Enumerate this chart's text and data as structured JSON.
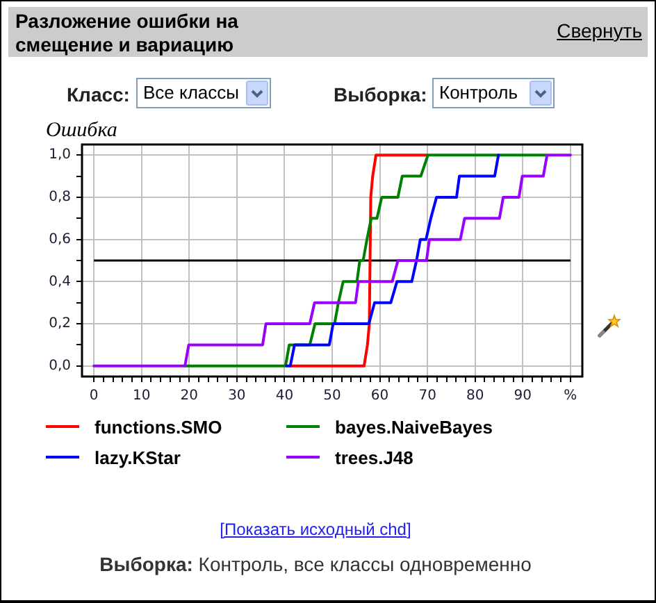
{
  "chart_data": {
    "type": "line",
    "title": "Разложение ошибки на смещение и вариацию",
    "ylabel": "Ошибка",
    "series": [
      {
        "name": "functions.SMO",
        "color": "#ff0000",
        "x": [
          41.3,
          56.7,
          57.4,
          57.8,
          58.1,
          58.5,
          59.2,
          70.1
        ],
        "values": [
          0,
          0,
          0.1,
          0.2,
          0.8,
          0.9,
          1,
          1
        ]
      },
      {
        "name": "bayes.NaiveBayes",
        "color": "#008000",
        "x": [
          19.1,
          40.2,
          41,
          45.3,
          46.4,
          50.5,
          51.3,
          52.3,
          55.2,
          55.8,
          56.5,
          57.3,
          58.2,
          59.4,
          60.4,
          63.8,
          64.7,
          68.6,
          70.1,
          95
        ],
        "values": [
          0,
          0,
          0.1,
          0.1,
          0.2,
          0.2,
          0.3,
          0.4,
          0.4,
          0.5,
          0.5,
          0.6,
          0.7,
          0.7,
          0.8,
          0.8,
          0.9,
          0.9,
          1,
          1
        ]
      },
      {
        "name": "lazy.KStar",
        "color": "#0000ff",
        "x": [
          40.4,
          41.2,
          42.1,
          49.4,
          50.2,
          57.7,
          58.9,
          62.3,
          63.6,
          66.7,
          67.7,
          68.5,
          69.7,
          70.7,
          71.9,
          76.1,
          76.7,
          84.1,
          84.9
        ],
        "values": [
          0,
          0,
          0.1,
          0.1,
          0.2,
          0.2,
          0.3,
          0.3,
          0.4,
          0.4,
          0.5,
          0.6,
          0.6,
          0.7,
          0.8,
          0.8,
          0.9,
          0.9,
          1
        ]
      },
      {
        "name": "trees.J48",
        "color": "#9900ff",
        "x": [
          0,
          19.1,
          19.9,
          35.4,
          36.1,
          45.3,
          46.3,
          54.9,
          55.5,
          62.6,
          63.8,
          69.8,
          70.4,
          76.9,
          77.8,
          85.1,
          85.9,
          89.2,
          89.9,
          94.3,
          95.1,
          100
        ],
        "values": [
          0,
          0,
          0.1,
          0.1,
          0.2,
          0.2,
          0.3,
          0.3,
          0.4,
          0.4,
          0.5,
          0.5,
          0.6,
          0.6,
          0.7,
          0.7,
          0.8,
          0.8,
          0.9,
          0.9,
          1,
          1
        ]
      }
    ],
    "xlim": [
      -2.5,
      102.5
    ],
    "ylim": [
      -0.05,
      1.05
    ],
    "xticks": [
      0,
      {
        "value": 2,
        "label": null
      },
      {
        "value": 4,
        "label": null
      },
      {
        "value": 6,
        "label": null
      },
      {
        "value": 8,
        "label": null
      },
      10,
      {
        "value": 12,
        "label": null
      },
      {
        "value": 14,
        "label": null
      },
      {
        "value": 16,
        "label": null
      },
      {
        "value": 18,
        "label": null
      },
      20,
      {
        "value": 22,
        "label": null
      },
      {
        "value": 24,
        "label": null
      },
      {
        "value": 26,
        "label": null
      },
      {
        "value": 28,
        "label": null
      },
      30,
      {
        "value": 32,
        "label": null
      },
      {
        "value": 34,
        "label": null
      },
      {
        "value": 36,
        "label": null
      },
      {
        "value": 38,
        "label": null
      },
      40,
      {
        "value": 42,
        "label": null
      },
      {
        "value": 44,
        "label": null
      },
      {
        "value": 46,
        "label": null
      },
      {
        "value": 48,
        "label": null
      },
      50,
      {
        "value": 52,
        "label": null
      },
      {
        "value": 54,
        "label": null
      },
      {
        "value": 56,
        "label": null
      },
      {
        "value": 58,
        "label": null
      },
      60,
      {
        "value": 62,
        "label": null
      },
      {
        "value": 64,
        "label": null
      },
      {
        "value": 66,
        "label": null
      },
      {
        "value": 68,
        "label": null
      },
      70,
      {
        "value": 72,
        "label": null
      },
      {
        "value": 74,
        "label": null
      },
      {
        "value": 76,
        "label": null
      },
      {
        "value": 78,
        "label": null
      },
      80,
      {
        "value": 82,
        "label": null
      },
      {
        "value": 84,
        "label": null
      },
      {
        "value": 86,
        "label": null
      },
      {
        "value": 88,
        "label": null
      },
      90,
      {
        "value": 92,
        "label": null
      },
      {
        "value": 94,
        "label": null
      },
      {
        "value": 96,
        "label": null
      },
      {
        "value": 98,
        "label": null
      },
      {
        "value": 100,
        "label": "%"
      }
    ],
    "yticks": [
      {
        "value": 0,
        "label": "0,0"
      },
      {
        "value": 0.1,
        "label": null
      },
      {
        "value": 0.2,
        "label": "0,2"
      },
      {
        "value": 0.3,
        "label": null
      },
      {
        "value": 0.4,
        "label": "0,4"
      },
      {
        "value": 0.5,
        "label": null
      },
      {
        "value": 0.6,
        "label": "0,6"
      },
      {
        "value": 0.7,
        "label": null
      },
      {
        "value": 0.8,
        "label": "0,8"
      },
      {
        "value": 0.9,
        "label": null
      },
      {
        "value": 1,
        "label": "1,0"
      }
    ],
    "ref_lines": [
      {
        "axis": "y",
        "value": 0.5,
        "color": "#000000"
      }
    ],
    "grid": true,
    "legend": "bottom",
    "marker": "none",
    "line_style": "solid",
    "annotations": [
      "Свернуть",
      "Класс:",
      "Все классы",
      "Выборка:",
      "Контроль",
      "[Показать исходный chd]",
      "Выборка:",
      "Контроль, все классы одновременно"
    ]
  }
}
